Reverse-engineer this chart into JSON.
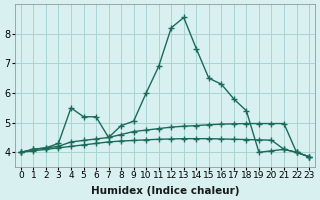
{
  "xlabel": "Humidex (Indice chaleur)",
  "x": [
    0,
    1,
    2,
    3,
    4,
    5,
    6,
    7,
    8,
    9,
    10,
    11,
    12,
    13,
    14,
    15,
    16,
    17,
    18,
    19,
    20,
    21,
    22,
    23
  ],
  "lines": [
    [
      4.0,
      4.1,
      4.15,
      4.3,
      5.5,
      5.2,
      5.2,
      4.5,
      4.9,
      5.05,
      6.0,
      6.9,
      8.2,
      8.55,
      7.5,
      6.5,
      6.3,
      5.8,
      5.4,
      4.0,
      4.05,
      4.1,
      4.0,
      3.85
    ],
    [
      4.0,
      4.1,
      4.15,
      4.2,
      4.35,
      4.4,
      4.45,
      4.5,
      4.6,
      4.7,
      4.75,
      4.8,
      4.85,
      4.88,
      4.9,
      4.93,
      4.95,
      4.96,
      4.97,
      4.97,
      4.97,
      4.97,
      4.0,
      3.85
    ],
    [
      4.0,
      4.05,
      4.1,
      4.15,
      4.2,
      4.25,
      4.3,
      4.35,
      4.38,
      4.4,
      4.42,
      4.44,
      4.45,
      4.46,
      4.46,
      4.46,
      4.45,
      4.44,
      4.43,
      4.42,
      4.41,
      4.1,
      4.0,
      3.85
    ]
  ],
  "line_color": "#1a6b5a",
  "bg_color": "#d8f0f0",
  "grid_color": "#aad4d4",
  "ylim": [
    3.5,
    9.0
  ],
  "yticks": [
    4,
    5,
    6,
    7,
    8
  ],
  "xlim": [
    -0.5,
    23.5
  ]
}
